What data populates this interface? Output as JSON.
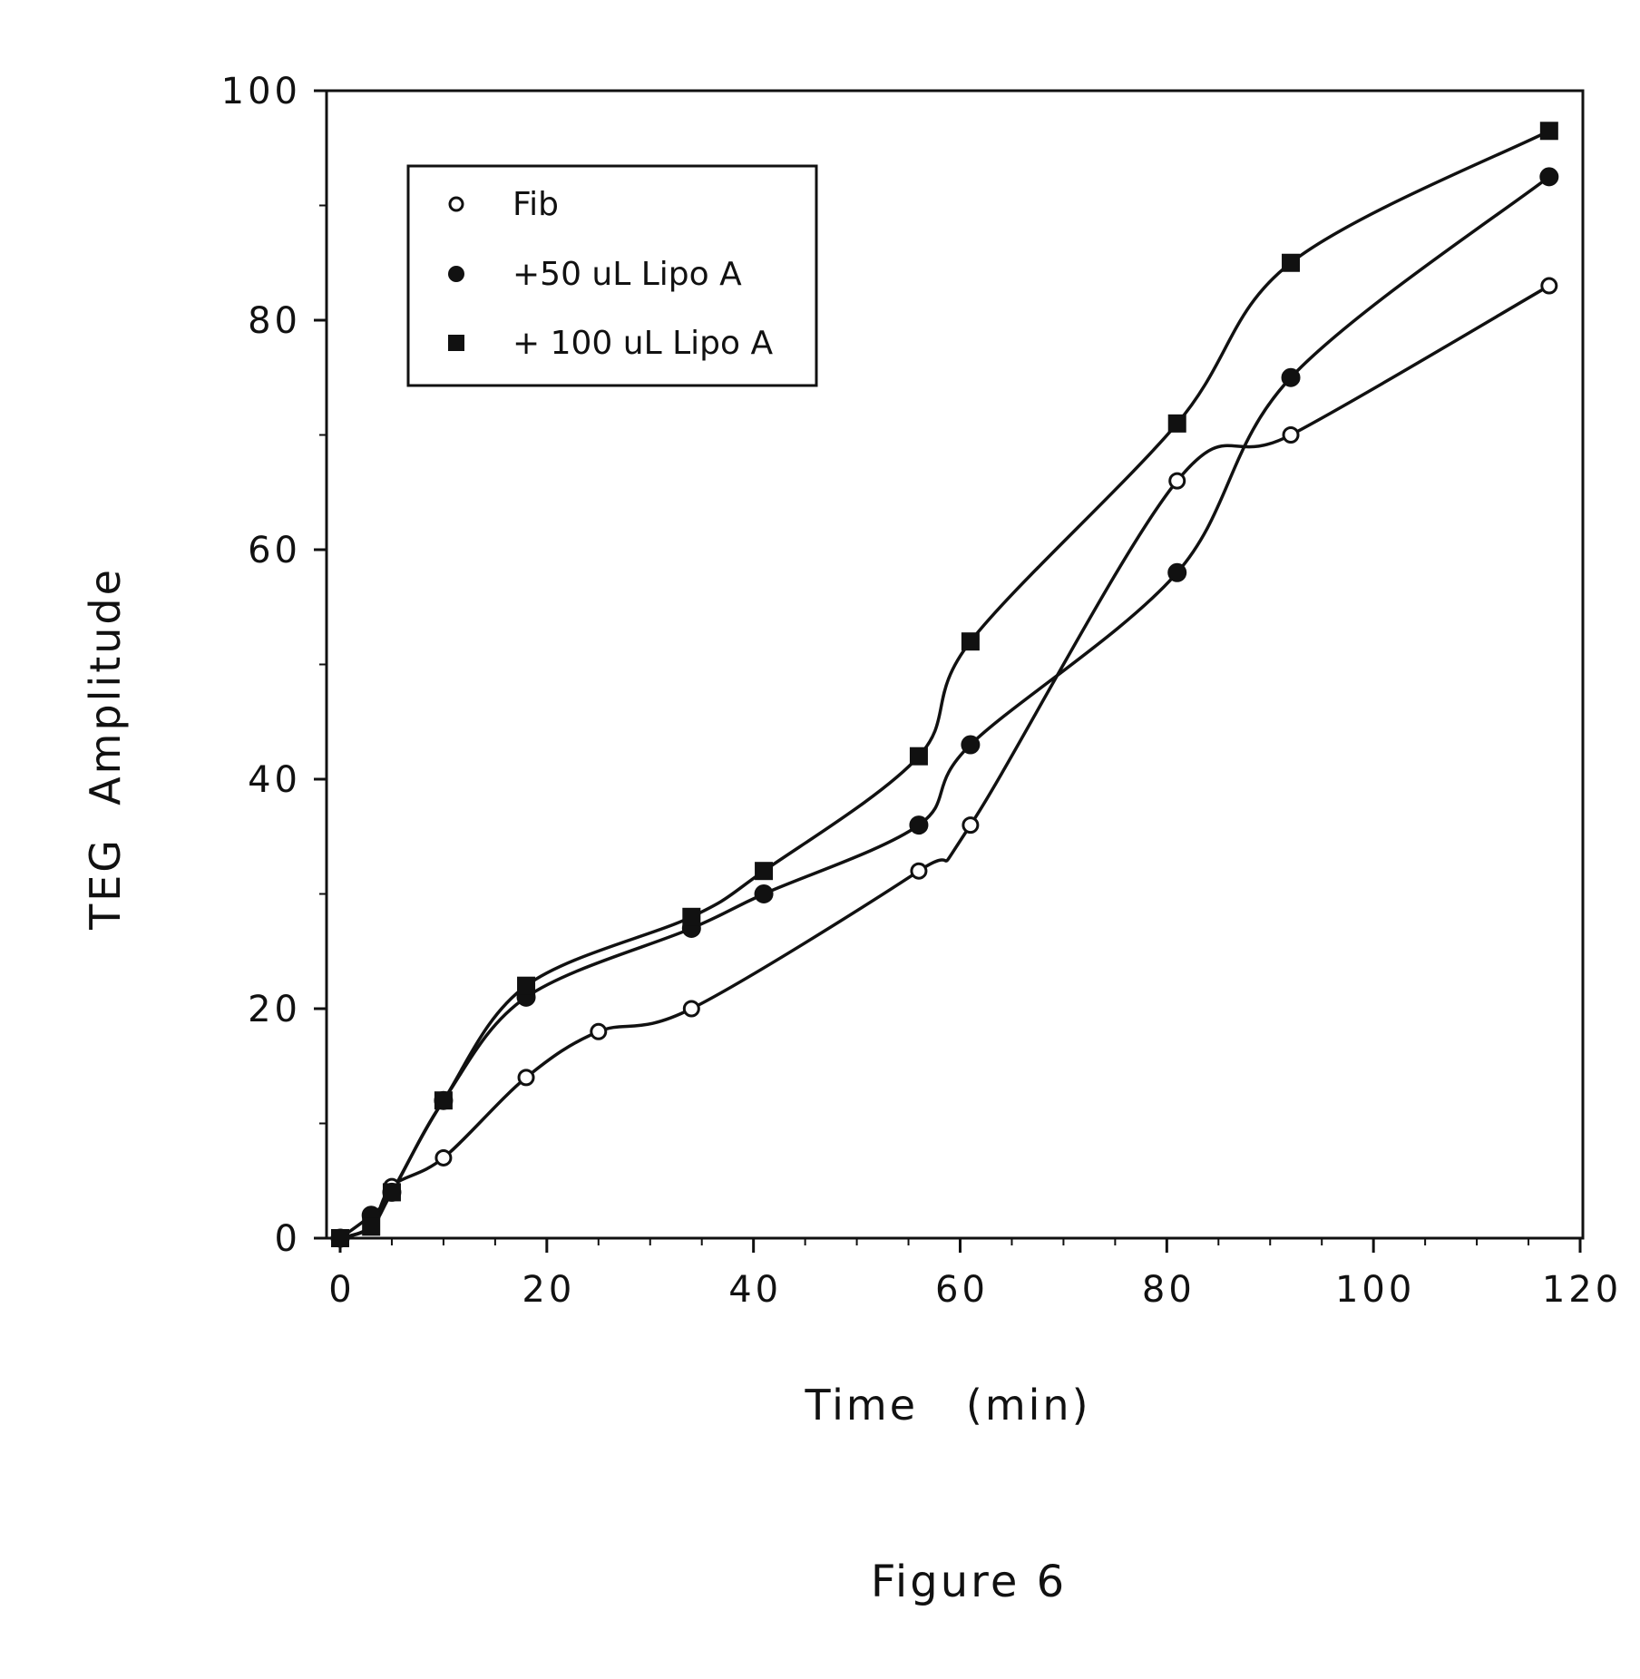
{
  "figure": {
    "caption": "Figure 6"
  },
  "chart_data": {
    "type": "line",
    "title": "",
    "xlabel": "Time   (min)",
    "ylabel": "TEG  Amplitude",
    "xlim": [
      0,
      120
    ],
    "ylim": [
      0,
      100
    ],
    "x_ticks": [
      0,
      20,
      40,
      60,
      80,
      100,
      120
    ],
    "y_ticks": [
      0,
      20,
      40,
      60,
      80,
      100
    ],
    "x_tick_labels": [
      "0",
      "20",
      "40",
      "60",
      "80",
      "100",
      "120"
    ],
    "y_tick_labels": [
      "0",
      "20",
      "40",
      "60",
      "80",
      "100"
    ],
    "grid": false,
    "legend_position": "top-left",
    "series": [
      {
        "name": "Fib",
        "marker": "open-circle",
        "x": [
          0,
          3,
          5,
          10,
          18,
          25,
          34,
          56,
          61,
          81,
          92,
          117
        ],
        "y": [
          0,
          1,
          4.5,
          7,
          14,
          18,
          20,
          32,
          36,
          66,
          70,
          83
        ]
      },
      {
        "name": "+50 uL Lipo A",
        "marker": "filled-circle",
        "x": [
          0,
          3,
          5,
          10,
          18,
          34,
          41,
          56,
          61,
          81,
          92,
          117
        ],
        "y": [
          0,
          2,
          4,
          12,
          21,
          27,
          30,
          36,
          43,
          58,
          75,
          92.5
        ]
      },
      {
        "name": "+ 100 uL Lipo A",
        "marker": "filled-square",
        "x": [
          0,
          3,
          5,
          10,
          18,
          34,
          41,
          56,
          61,
          81,
          92,
          117
        ],
        "y": [
          0,
          1,
          4,
          12,
          22,
          28,
          32,
          42,
          52,
          71,
          85,
          96.5
        ]
      }
    ]
  }
}
